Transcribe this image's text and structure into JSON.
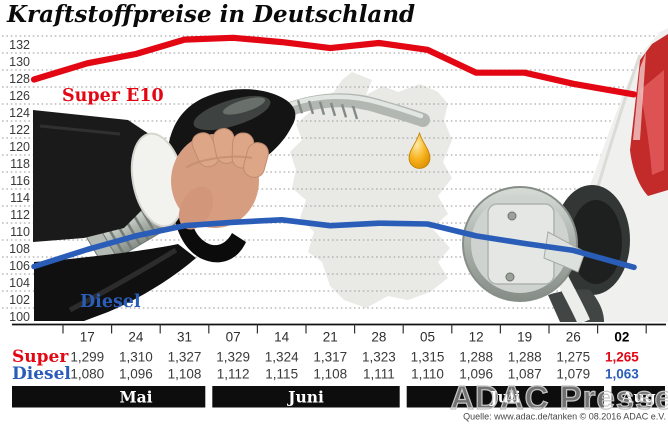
{
  "header": {
    "title": "Kraftstoffpreise in Deutschland"
  },
  "chart_data": {
    "type": "line",
    "title": "Kraftstoffpreise in Deutschland",
    "ylim": [
      100,
      132
    ],
    "ytick_step": 2,
    "yticks": [
      132,
      130,
      128,
      126,
      124,
      122,
      120,
      118,
      116,
      114,
      112,
      110,
      108,
      106,
      104,
      102,
      100
    ],
    "grid": "horizontal-dotted",
    "legend": "inline-labels-on-chart",
    "categories": [
      "17",
      "24",
      "31",
      "07",
      "14",
      "21",
      "28",
      "05",
      "12",
      "19",
      "26",
      "02"
    ],
    "highlight_last_column": true,
    "months": [
      {
        "label": "Mai",
        "columns": 3
      },
      {
        "label": "Juni",
        "columns": 4
      },
      {
        "label": "Juli",
        "columns": 4
      },
      {
        "label": "Aug",
        "columns": 1
      }
    ],
    "series": [
      {
        "name": "Super",
        "chart_label": "Super E10",
        "color": "#e30613",
        "values": [
          "1,299",
          "1,310",
          "1,327",
          "1,329",
          "1,324",
          "1,317",
          "1,323",
          "1,315",
          "1,288",
          "1,288",
          "1,275",
          "1,265"
        ]
      },
      {
        "name": "Diesel",
        "chart_label": "Diesel",
        "color": "#2a5db8",
        "values": [
          "1,080",
          "1,096",
          "1,108",
          "1,112",
          "1,115",
          "1,108",
          "1,111",
          "1,110",
          "1,096",
          "1,087",
          "1,079",
          "1,063"
        ]
      }
    ],
    "lead_in_values": {
      "Super": 1.28,
      "Diesel": 1.06
    }
  },
  "footer": {
    "source": "Quelle: www.adac.de/tanken",
    "copyright": "© 08.2016  ADAC e.V.",
    "watermark": "ADAC Presse"
  },
  "artwork": {
    "background": "germany-map-silhouette",
    "left": "hand-holding-fuel-nozzle-photo",
    "drop": "fuel-drop-icon",
    "right": "car-rear-with-open-fuel-door-photo"
  }
}
